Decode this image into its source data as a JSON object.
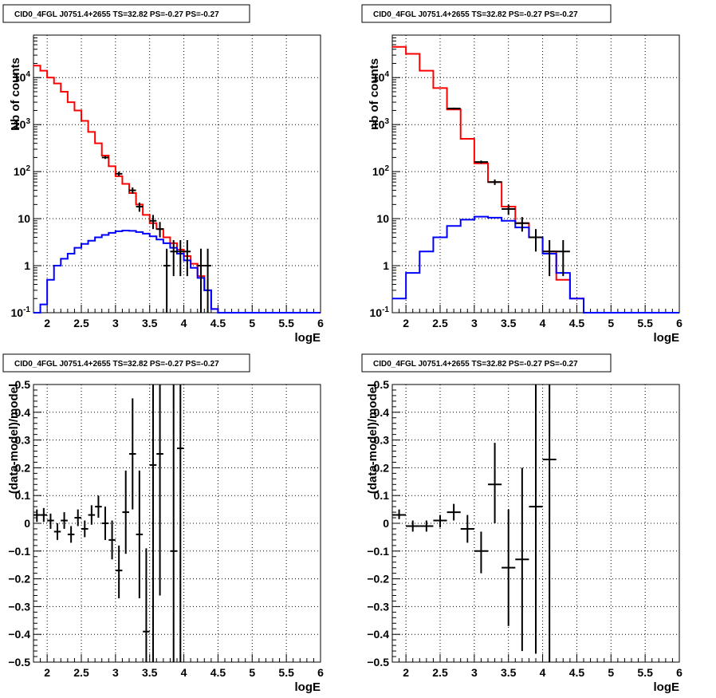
{
  "chart_data": [
    {
      "type": "line",
      "title": "CID0_4FGL J0751.4+2655 TS=32.82 PS=-0.27 PS=-0.27",
      "xlabel": "logE",
      "ylabel": "Nb of counts",
      "xlim": [
        1.8,
        6.0
      ],
      "ylim": [
        0.1,
        80000
      ],
      "log_y": true,
      "grid": true,
      "x_ticks": [
        "2",
        "2.5",
        "3",
        "3.5",
        "4",
        "4.5",
        "5",
        "5.5",
        "6"
      ],
      "y_ticks": [
        "10^-1",
        "1",
        "10",
        "10^2",
        "10^3",
        "10^4"
      ],
      "bin_edges": [
        1.8,
        1.9,
        2.0,
        2.1,
        2.2,
        2.3,
        2.4,
        2.5,
        2.6,
        2.7,
        2.8,
        2.9,
        3.0,
        3.1,
        3.2,
        3.3,
        3.4,
        3.5,
        3.6,
        3.7,
        3.8,
        3.9,
        4.0,
        4.1,
        4.2,
        4.3,
        4.4,
        4.5,
        4.6,
        4.7,
        4.8,
        4.9,
        5.0,
        5.1,
        5.2,
        5.3,
        5.4,
        5.5,
        5.6,
        5.7,
        5.8,
        5.9,
        6.0
      ],
      "series": [
        {
          "color": "#ff0000",
          "values": [
            18000,
            14000,
            10000,
            7500,
            5000,
            3000,
            2000,
            1200,
            700,
            400,
            220,
            130,
            80,
            55,
            35,
            20,
            12,
            8,
            6,
            4,
            3,
            2.2,
            1.6,
            1.1,
            0.6,
            0.3,
            0.12,
            0.1,
            0.1,
            0.1,
            0.1,
            0.1,
            0.1,
            0.1,
            0.1,
            0.1,
            0.1,
            0.1,
            0.1,
            0.1,
            0.1,
            0.1
          ]
        },
        {
          "color": "#0000ff",
          "values": [
            0.1,
            0.15,
            0.5,
            1.0,
            1.4,
            1.8,
            2.4,
            2.9,
            3.4,
            4.0,
            4.5,
            5.0,
            5.4,
            5.6,
            5.5,
            5.2,
            4.8,
            4.2,
            3.6,
            3.0,
            2.4,
            1.8,
            1.3,
            0.9,
            0.55,
            0.3,
            0.12,
            0.1,
            0.1,
            0.1,
            0.1,
            0.1,
            0.1,
            0.1,
            0.1,
            0.1,
            0.1,
            0.1,
            0.1,
            0.1,
            0.1,
            0.1
          ]
        },
        {
          "color": "#000000",
          "style": "points",
          "points": [
            {
              "x": 2.85,
              "y": 200,
              "lo": 186,
              "hi": 214
            },
            {
              "x": 3.05,
              "y": 90,
              "lo": 80,
              "hi": 100
            },
            {
              "x": 3.25,
              "y": 40,
              "lo": 34,
              "hi": 46
            },
            {
              "x": 3.35,
              "y": 18,
              "lo": 14,
              "hi": 22
            },
            {
              "x": 3.55,
              "y": 9,
              "lo": 6,
              "hi": 12
            },
            {
              "x": 3.65,
              "y": 6,
              "lo": 4,
              "hi": 8.5
            },
            {
              "x": 3.75,
              "y": 1,
              "lo": 0.1,
              "hi": 2.3
            },
            {
              "x": 3.85,
              "y": 2,
              "lo": 0.6,
              "hi": 3.5
            },
            {
              "x": 3.95,
              "y": 2,
              "lo": 0.6,
              "hi": 3.5
            },
            {
              "x": 4.05,
              "y": 2,
              "lo": 0.6,
              "hi": 3.5
            },
            {
              "x": 4.25,
              "y": 1,
              "lo": 0.1,
              "hi": 2.3
            },
            {
              "x": 4.35,
              "y": 1,
              "lo": 0.1,
              "hi": 2.3
            }
          ]
        }
      ]
    },
    {
      "type": "line",
      "title": "CID0_4FGL J0751.4+2655 TS=32.82 PS=-0.27 PS=-0.27",
      "xlabel": "logE",
      "ylabel": "nb of counts",
      "xlim": [
        1.8,
        6.0
      ],
      "ylim": [
        0.1,
        80000
      ],
      "log_y": true,
      "grid": true,
      "x_ticks": [
        "2",
        "2.5",
        "3",
        "3.5",
        "4",
        "4.5",
        "5",
        "5.5",
        "6"
      ],
      "y_ticks": [
        "10^-1",
        "1",
        "10",
        "10^2",
        "10^3",
        "10^4"
      ],
      "bin_edges": [
        1.8,
        2.0,
        2.2,
        2.4,
        2.6,
        2.8,
        3.0,
        3.2,
        3.4,
        3.6,
        3.8,
        4.0,
        4.2,
        4.4,
        4.6,
        4.8,
        5.0,
        5.2,
        5.4,
        5.6,
        5.8,
        6.0
      ],
      "series": [
        {
          "color": "#ff0000",
          "values": [
            45000,
            32000,
            14000,
            6000,
            2100,
            500,
            150,
            60,
            18,
            8,
            4,
            2,
            0.5,
            0.2,
            0.1,
            0.1,
            0.1,
            0.1,
            0.1,
            0.1,
            0.1
          ]
        },
        {
          "color": "#0000ff",
          "values": [
            0.2,
            0.7,
            2.0,
            4.0,
            7.0,
            9.5,
            11,
            10.5,
            9.0,
            6.5,
            4.0,
            1.8,
            0.7,
            0.2,
            0.1,
            0.1,
            0.1,
            0.1,
            0.1,
            0.1,
            0.1
          ]
        },
        {
          "color": "#000000",
          "style": "points",
          "points": [
            {
              "x": 2.7,
              "y": 2200,
              "lo": 2100,
              "hi": 2300
            },
            {
              "x": 3.1,
              "y": 160,
              "lo": 148,
              "hi": 172
            },
            {
              "x": 3.3,
              "y": 60,
              "lo": 52,
              "hi": 68
            },
            {
              "x": 3.5,
              "y": 16,
              "lo": 12,
              "hi": 20
            },
            {
              "x": 3.7,
              "y": 8,
              "lo": 5.3,
              "hi": 10.8
            },
            {
              "x": 3.9,
              "y": 4,
              "lo": 2.0,
              "hi": 6.0
            },
            {
              "x": 4.1,
              "y": 2,
              "lo": 0.6,
              "hi": 3.5
            },
            {
              "x": 4.3,
              "y": 2,
              "lo": 0.6,
              "hi": 3.5
            }
          ]
        }
      ]
    },
    {
      "type": "scatter",
      "title": "CID0_4FGL J0751.4+2655 TS=32.82 PS=-0.27 PS=-0.27",
      "xlabel": "logE",
      "ylabel": "(data-model)/model",
      "xlim": [
        1.8,
        6.0
      ],
      "ylim": [
        -0.5,
        0.5
      ],
      "grid": true,
      "x_ticks": [
        "2",
        "2.5",
        "3",
        "3.5",
        "4",
        "4.5",
        "5",
        "5.5",
        "6"
      ],
      "y_ticks": [
        "-0.5",
        "-0.4",
        "-0.3",
        "-0.2",
        "-0.1",
        "0",
        "0.1",
        "0.2",
        "0.3",
        "0.4",
        "0.5"
      ],
      "bin_half_width": 0.05,
      "points": [
        {
          "x": 1.85,
          "y": 0.03,
          "lo": 0.005,
          "hi": 0.05
        },
        {
          "x": 1.95,
          "y": 0.03,
          "lo": 0.005,
          "hi": 0.055
        },
        {
          "x": 2.05,
          "y": 0.01,
          "lo": -0.02,
          "hi": 0.035
        },
        {
          "x": 2.15,
          "y": -0.03,
          "lo": -0.06,
          "hi": 0.0
        },
        {
          "x": 2.25,
          "y": 0.01,
          "lo": -0.02,
          "hi": 0.04
        },
        {
          "x": 2.35,
          "y": -0.04,
          "lo": -0.07,
          "hi": -0.01
        },
        {
          "x": 2.45,
          "y": 0.02,
          "lo": -0.01,
          "hi": 0.05
        },
        {
          "x": 2.55,
          "y": -0.02,
          "lo": -0.05,
          "hi": 0.01
        },
        {
          "x": 2.65,
          "y": 0.03,
          "lo": -0.005,
          "hi": 0.065
        },
        {
          "x": 2.75,
          "y": 0.06,
          "lo": 0.02,
          "hi": 0.1
        },
        {
          "x": 2.85,
          "y": 0.0,
          "lo": -0.06,
          "hi": 0.06
        },
        {
          "x": 2.95,
          "y": -0.06,
          "lo": -0.13,
          "hi": 0.01
        },
        {
          "x": 3.05,
          "y": -0.17,
          "lo": -0.27,
          "hi": -0.08
        },
        {
          "x": 3.15,
          "y": 0.04,
          "lo": -0.11,
          "hi": 0.19
        },
        {
          "x": 3.25,
          "y": 0.25,
          "lo": 0.05,
          "hi": 0.45
        },
        {
          "x": 3.35,
          "y": -0.04,
          "lo": -0.27,
          "hi": 0.19
        },
        {
          "x": 3.45,
          "y": -0.39,
          "lo": -0.5,
          "hi": -0.09
        },
        {
          "x": 3.55,
          "y": 0.21,
          "lo": -0.5,
          "hi": 0.5
        },
        {
          "x": 3.65,
          "y": 0.25,
          "lo": -0.26,
          "hi": 0.5
        },
        {
          "x": 3.85,
          "y": -0.1,
          "lo": -0.5,
          "hi": 0.5
        },
        {
          "x": 3.95,
          "y": 0.27,
          "lo": -0.5,
          "hi": 0.5
        }
      ]
    },
    {
      "type": "scatter",
      "title": "CID0_4FGL J0751.4+2655 TS=32.82 PS=-0.27 PS=-0.27",
      "xlabel": "logE",
      "ylabel": "(data-model)/model",
      "xlim": [
        1.8,
        6.0
      ],
      "ylim": [
        -0.5,
        0.5
      ],
      "grid": true,
      "x_ticks": [
        "2",
        "2.5",
        "3",
        "3.5",
        "4",
        "4.5",
        "5",
        "5.5",
        "6"
      ],
      "y_ticks": [
        "-0.5",
        "-0.4",
        "-0.3",
        "-0.2",
        "-0.1",
        "0",
        "0.1",
        "0.2",
        "0.3",
        "0.4",
        "0.5"
      ],
      "bin_half_width": 0.1,
      "points": [
        {
          "x": 1.9,
          "y": 0.03,
          "lo": 0.015,
          "hi": 0.05
        },
        {
          "x": 2.1,
          "y": -0.01,
          "lo": -0.03,
          "hi": 0.01
        },
        {
          "x": 2.3,
          "y": -0.01,
          "lo": -0.03,
          "hi": 0.01
        },
        {
          "x": 2.5,
          "y": 0.01,
          "lo": -0.015,
          "hi": 0.03
        },
        {
          "x": 2.7,
          "y": 0.04,
          "lo": 0.01,
          "hi": 0.07
        },
        {
          "x": 2.9,
          "y": -0.02,
          "lo": -0.07,
          "hi": 0.03
        },
        {
          "x": 3.1,
          "y": -0.1,
          "lo": -0.18,
          "hi": -0.03
        },
        {
          "x": 3.3,
          "y": 0.14,
          "lo": 0.0,
          "hi": 0.29
        },
        {
          "x": 3.5,
          "y": -0.16,
          "lo": -0.37,
          "hi": 0.05
        },
        {
          "x": 3.7,
          "y": -0.13,
          "lo": -0.46,
          "hi": 0.2
        },
        {
          "x": 3.9,
          "y": 0.06,
          "lo": -0.47,
          "hi": 0.5
        },
        {
          "x": 4.1,
          "y": 0.23,
          "lo": -0.5,
          "hi": 0.5
        }
      ]
    }
  ]
}
